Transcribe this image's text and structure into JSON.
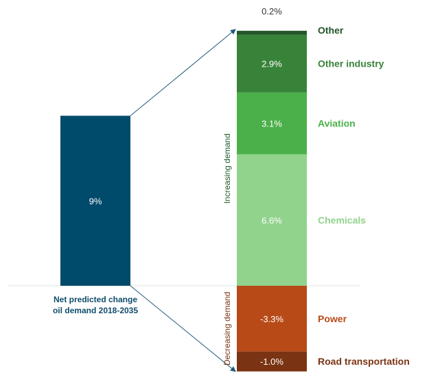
{
  "chart_data": {
    "type": "bar",
    "subtype": "waterfall-breakdown",
    "net": {
      "label": "Net predicted change\noil demand 2018-2035",
      "value": 9,
      "value_label": "9%",
      "color": "#004a6b"
    },
    "increasing_label": "Increasing demand",
    "decreasing_label": "Decreasing demand",
    "segments": [
      {
        "name": "Other",
        "value": 0.2,
        "value_label": "0.2%",
        "color": "#23542a",
        "label_color": "#23542a"
      },
      {
        "name": "Other industry",
        "value": 2.9,
        "value_label": "2.9%",
        "color": "#38833a",
        "label_color": "#38833a"
      },
      {
        "name": "Aviation",
        "value": 3.1,
        "value_label": "3.1%",
        "color": "#4bb04a",
        "label_color": "#4bb04a"
      },
      {
        "name": "Chemicals",
        "value": 6.6,
        "value_label": "6.6%",
        "color": "#91d38c",
        "label_color": "#91d38c"
      },
      {
        "name": "Power",
        "value": -3.3,
        "value_label": "-3.3%",
        "color": "#b84a17",
        "label_color": "#b84a17"
      },
      {
        "name": "Road transportation",
        "value": -1.0,
        "value_label": "-1.0%",
        "color": "#7a3313",
        "label_color": "#7a3313"
      }
    ]
  }
}
